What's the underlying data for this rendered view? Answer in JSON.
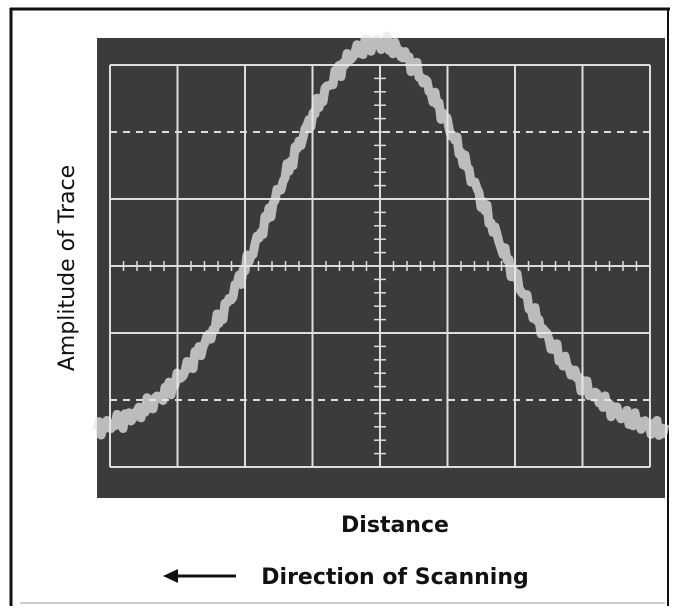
{
  "figure": {
    "y_label": "Amplitude of Trace",
    "x_label": "Distance",
    "caption": "Direction of Scanning"
  }
}
